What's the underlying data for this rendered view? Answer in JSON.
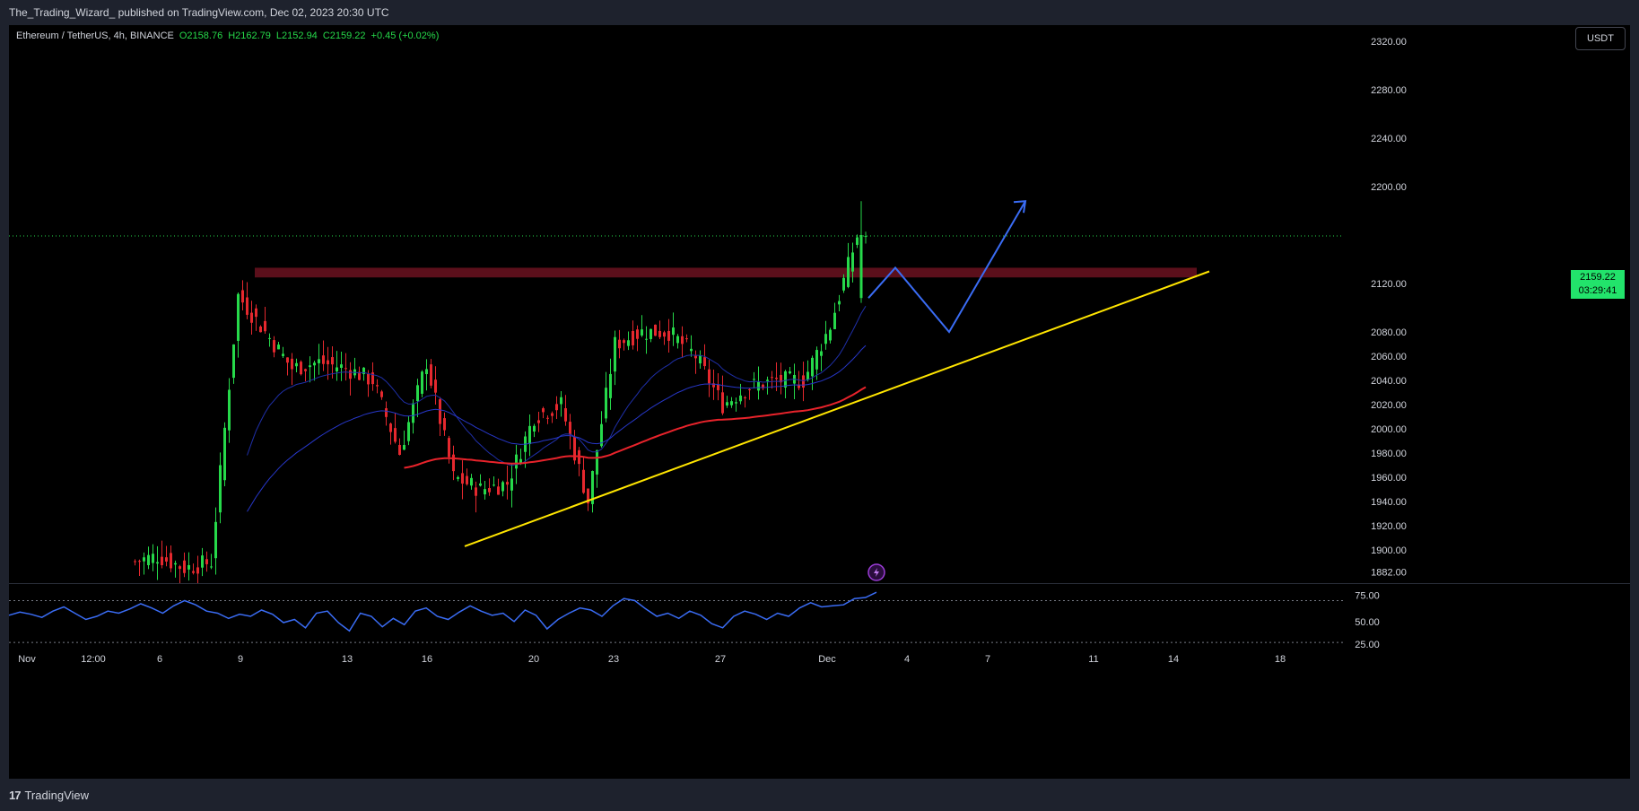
{
  "header": {
    "published_text": "The_Trading_Wizard_ published on TradingView.com, Dec 02, 2023 20:30 UTC"
  },
  "legend": {
    "symbol": "Ethereum / TetherUS, 4h, BINANCE",
    "open": "O2158.76",
    "high": "H2162.79",
    "low": "L2152.94",
    "close": "C2159.22",
    "change": "+0.45 (+0.02%)"
  },
  "currency_button": "USDT",
  "last_price": {
    "value": "2159.22",
    "countdown": "03:29:41"
  },
  "footer": {
    "brand": "TradingView"
  },
  "colors": {
    "up": "#26d94a",
    "down": "#e5282e",
    "ema_fast": "#1f2fa8",
    "ema_mid": "#2737c9",
    "ema_slow": "#e8232b",
    "trendline": "#ffe500",
    "resistance_zone": "#6b1220",
    "projection": "#3a6cf4",
    "rsi": "#3a6cf4"
  },
  "chart_data": [
    {
      "type": "candlestick",
      "symbol": "Ethereum / TetherUS",
      "interval": "4h",
      "exchange": "BINANCE",
      "ylim": [
        1870,
        2340
      ],
      "y_ticks": [
        "2320.00",
        "2280.00",
        "2240.00",
        "2200.00",
        "2120.00",
        "2080.00",
        "2060.00",
        "2040.00",
        "2020.00",
        "2000.00",
        "1980.00",
        "1960.00",
        "1940.00",
        "1920.00",
        "1900.00",
        "1882.00"
      ],
      "x_ticks": [
        "Nov",
        "12:00",
        "6",
        "9",
        "13",
        "16",
        "20",
        "23",
        "27",
        "Dec",
        "4",
        "7",
        "11",
        "14",
        "18"
      ],
      "last_price": 2159.22,
      "approx_closes": [
        {
          "date": "Nov 5",
          "close": 1890
        },
        {
          "date": "Nov 6",
          "close": 1895
        },
        {
          "date": "Nov 7",
          "close": 1885
        },
        {
          "date": "Nov 8",
          "close": 1890
        },
        {
          "date": "Nov 9",
          "close": 2110
        },
        {
          "date": "Nov 10",
          "close": 2080
        },
        {
          "date": "Nov 11",
          "close": 2050
        },
        {
          "date": "Nov 12",
          "close": 2055
        },
        {
          "date": "Nov 13",
          "close": 2050
        },
        {
          "date": "Nov 14",
          "close": 2040
        },
        {
          "date": "Nov 15",
          "close": 1980
        },
        {
          "date": "Nov 16",
          "close": 2055
        },
        {
          "date": "Nov 17",
          "close": 1960
        },
        {
          "date": "Nov 18",
          "close": 1950
        },
        {
          "date": "Nov 19",
          "close": 1955
        },
        {
          "date": "Nov 20",
          "close": 2010
        },
        {
          "date": "Nov 21",
          "close": 2020
        },
        {
          "date": "Nov 22",
          "close": 1940
        },
        {
          "date": "Nov 23",
          "close": 2070
        },
        {
          "date": "Nov 24",
          "close": 2080
        },
        {
          "date": "Nov 25",
          "close": 2080
        },
        {
          "date": "Nov 26",
          "close": 2060
        },
        {
          "date": "Nov 27",
          "close": 2020
        },
        {
          "date": "Nov 28",
          "close": 2035
        },
        {
          "date": "Nov 29",
          "close": 2040
        },
        {
          "date": "Nov 30",
          "close": 2040
        },
        {
          "date": "Dec 1",
          "close": 2085
        },
        {
          "date": "Dec 2",
          "close": 2159.22
        }
      ],
      "overlays": {
        "resistance_zone": [
          2125,
          2133
        ],
        "trendline": [
          {
            "date": "Nov 17",
            "price": 1903
          },
          {
            "date": "Dec 15",
            "price": 2130
          }
        ],
        "projection_path_prices": [
          2108,
          2133,
          2080,
          2188
        ]
      }
    },
    {
      "type": "line",
      "name": "RSI",
      "ylim": [
        25,
        85
      ],
      "y_ticks": [
        "75.00",
        "50.00",
        "25.00"
      ],
      "levels": [
        70,
        30
      ],
      "values": [
        56,
        59,
        57,
        54,
        60,
        64,
        58,
        52,
        55,
        60,
        58,
        62,
        67,
        63,
        58,
        65,
        70,
        66,
        60,
        58,
        53,
        57,
        55,
        61,
        57,
        49,
        52,
        44,
        58,
        60,
        49,
        41,
        58,
        55,
        45,
        53,
        47,
        60,
        63,
        55,
        52,
        59,
        65,
        60,
        56,
        58,
        50,
        61,
        56,
        43,
        52,
        58,
        63,
        61,
        55,
        65,
        72,
        70,
        62,
        55,
        58,
        53,
        60,
        56,
        48,
        44,
        55,
        60,
        57,
        52,
        58,
        55,
        63,
        68,
        64,
        65,
        66,
        72,
        73,
        78
      ]
    }
  ]
}
